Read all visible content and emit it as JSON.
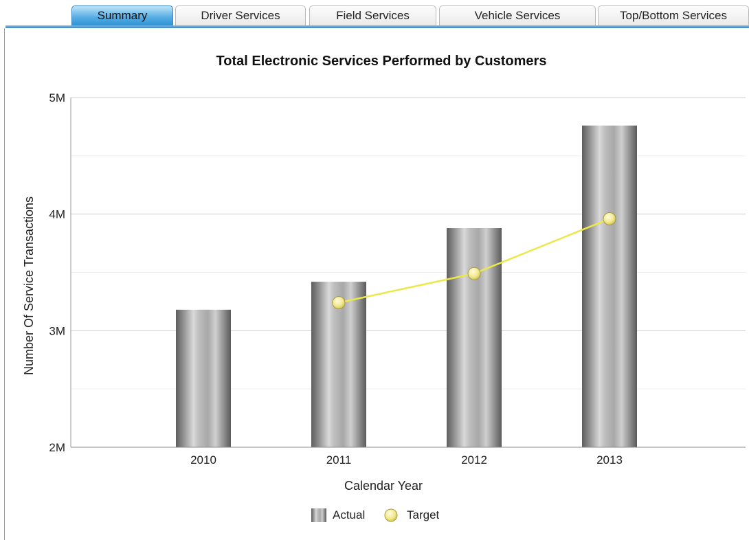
{
  "tabs": [
    {
      "label": "Summary",
      "active": true
    },
    {
      "label": "Driver Services",
      "active": false
    },
    {
      "label": "Field Services",
      "active": false
    },
    {
      "label": "Vehicle Services",
      "active": false
    },
    {
      "label": "Top/Bottom Services",
      "active": false
    }
  ],
  "colors": {
    "tab_active": "#57aee4",
    "bar_dark": "#6b6b6b",
    "bar_light": "#d6d6d6",
    "target_line": "#ece84a",
    "target_marker": "#f5ec96"
  },
  "chart_data": {
    "type": "bar",
    "title": "Total Electronic Services Performed by Customers",
    "xlabel": "Calendar Year",
    "ylabel": "Number Of Service Transactions",
    "categories": [
      "2010",
      "2011",
      "2012",
      "2013"
    ],
    "series": [
      {
        "name": "Actual",
        "type": "bar",
        "values": [
          3180000,
          3420000,
          3880000,
          4760000
        ]
      },
      {
        "name": "Target",
        "type": "line",
        "values": [
          null,
          3240000,
          3490000,
          3960000
        ]
      }
    ],
    "ylim": [
      2000000,
      5000000
    ],
    "y_ticks": [
      {
        "value": 2000000,
        "label": "2M"
      },
      {
        "value": 3000000,
        "label": "3M"
      },
      {
        "value": 4000000,
        "label": "4M"
      },
      {
        "value": 5000000,
        "label": "5M"
      }
    ],
    "grid": true,
    "legend_position": "bottom"
  }
}
